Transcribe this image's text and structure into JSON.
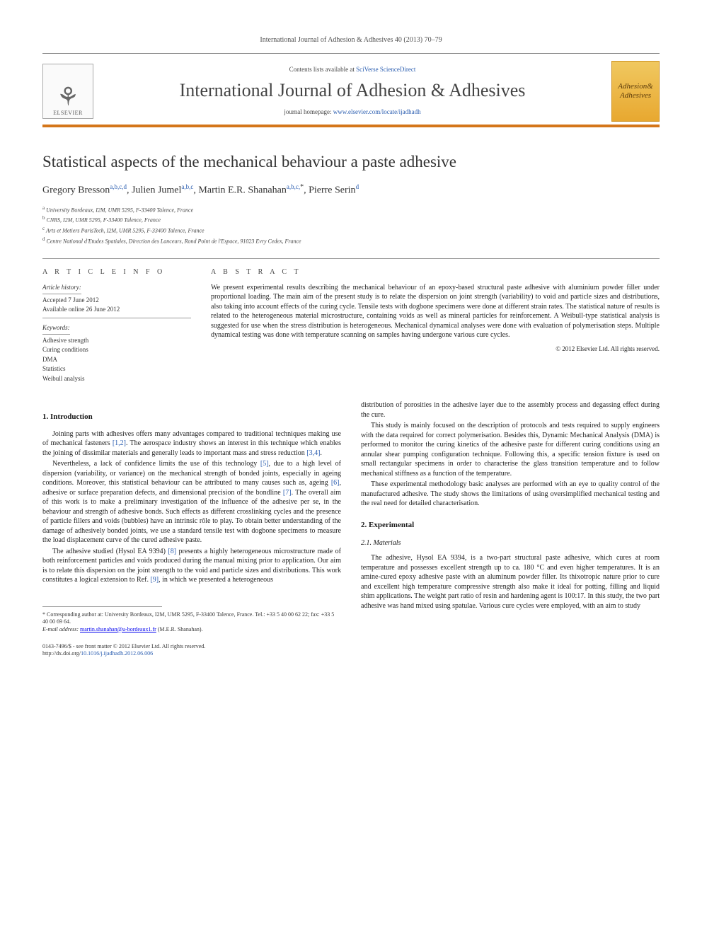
{
  "header": {
    "citation": "International Journal of Adhesion & Adhesives 40 (2013) 70–79",
    "contents_prefix": "Contents lists available at ",
    "contents_link": "SciVerse ScienceDirect",
    "journal_name": "International Journal of Adhesion & Adhesives",
    "homepage_prefix": "journal homepage: ",
    "homepage_link": "www.elsevier.com/locate/ijadhadh",
    "publisher": "ELSEVIER",
    "cover_line1": "Adhesion&",
    "cover_line2": "Adhesives"
  },
  "article": {
    "title": "Statistical aspects of the mechanical behaviour a paste adhesive",
    "authors": [
      {
        "name": "Gregory Bresson",
        "aff": "a,b,c,d"
      },
      {
        "name": "Julien Jumel",
        "aff": "a,b,c"
      },
      {
        "name": "Martin E.R. Shanahan",
        "aff": "a,b,c,",
        "star": "*"
      },
      {
        "name": "Pierre Serin",
        "aff": "d"
      }
    ],
    "affiliations": [
      {
        "sup": "a",
        "text": "University Bordeaux, I2M, UMR 5295, F-33400 Talence, France"
      },
      {
        "sup": "b",
        "text": "CNRS, I2M, UMR 5295, F-33400 Talence, France"
      },
      {
        "sup": "c",
        "text": "Arts et Metiers ParisTech, I2M, UMR 5295, F-33400 Talence, France"
      },
      {
        "sup": "d",
        "text": "Centre National d'Etudes Spatiales, Direction des Lanceurs, Rond Point de l'Espace, 91023 Evry Cedex, France"
      }
    ]
  },
  "info": {
    "article_info_heading": "A R T I C L E  I N F O",
    "abstract_heading": "A B S T R A C T",
    "history_label": "Article history:",
    "accepted": "Accepted 7 June 2012",
    "online": "Available online 26 June 2012",
    "keywords_label": "Keywords:",
    "keywords": [
      "Adhesive strength",
      "Curing conditions",
      "DMA",
      "Statistics",
      "Weibull analysis"
    ],
    "abstract": "We present experimental results describing the mechanical behaviour of an epoxy-based structural paste adhesive with aluminium powder filler under proportional loading. The main aim of the present study is to relate the dispersion on joint strength (variability) to void and particle sizes and distributions, also taking into account effects of the curing cycle. Tensile tests with dogbone specimens were done at different strain rates. The statistical nature of results is related to the heterogeneous material microstructure, containing voids as well as mineral particles for reinforcement. A Weibull-type statistical analysis is suggested for use when the stress distribution is heterogeneous. Mechanical dynamical analyses were done with evaluation of polymerisation steps. Multiple dynamical testing was done with temperature scanning on samples having undergone various cure cycles.",
    "copyright": "© 2012 Elsevier Ltd. All rights reserved."
  },
  "body": {
    "sec1_heading": "1. Introduction",
    "sec2_heading": "2. Experimental",
    "sec21_heading": "2.1. Materials",
    "p1_pre": "Joining parts with adhesives offers many advantages compared to traditional techniques making use of mechanical fasteners ",
    "p1_c1": "[1,2]",
    "p1_mid": ". The aerospace industry shows an interest in this technique which enables the joining of dissimilar materials and generally leads to important mass and stress reduction ",
    "p1_c2": "[3,4]",
    "p1_end": ".",
    "p2_pre": "Nevertheless, a lack of confidence limits the use of this technology ",
    "p2_c1": "[5]",
    "p2_a": ", due to a high level of dispersion (variability, or variance) on the mechanical strength of bonded joints, especially in ageing conditions. Moreover, this statistical behaviour can be attributed to many causes such as, ageing ",
    "p2_c2": "[6]",
    "p2_b": ", adhesive or surface preparation defects, and dimensional precision of the bondline ",
    "p2_c3": "[7]",
    "p2_c": ". The overall aim of this work is to make a preliminary investigation of the influence of the adhesive per se, in the behaviour and strength of adhesive bonds. Such effects as different crosslinking cycles and the presence of particle fillers and voids (bubbles) have an intrinsic rôle to play. To obtain better understanding of the damage of adhesively bonded joints, we use a standard tensile test with dogbone specimens to measure the load displacement curve of the cured adhesive paste.",
    "p3_pre": "The adhesive studied (Hysol EA 9394) ",
    "p3_c1": "[8]",
    "p3_a": " presents a highly heterogeneous microstructure made of both reinforcement particles and voids produced during the manual mixing prior to application. Our aim is to relate this dispersion on the joint strength to the void and particle sizes and distributions. This work constitutes a logical extension to Ref. ",
    "p3_c2": "[9]",
    "p3_b": ", in which we presented a heterogeneous",
    "p4": "distribution of porosities in the adhesive layer due to the assembly process and degassing effect during the cure.",
    "p5": "This study is mainly focused on the description of protocols and tests required to supply engineers with the data required for correct polymerisation. Besides this, Dynamic Mechanical Analysis (DMA) is performed to monitor the curing kinetics of the adhesive paste for different curing conditions using an annular shear pumping configuration technique. Following this, a specific tension fixture is used on small rectangular specimens in order to characterise the glass transition temperature and to follow mechanical stiffness as a function of the temperature.",
    "p6": "These experimental methodology basic analyses are performed with an eye to quality control of the manufactured adhesive. The study shows the limitations of using oversimplified mechanical testing and the real need for detailed characterisation.",
    "p7": "The adhesive, Hysol EA 9394, is a two-part structural paste adhesive, which cures at room temperature and possesses excellent strength up to ca. 180 °C and even higher temperatures. It is an amine-cured epoxy adhesive paste with an aluminum powder filler. Its thixotropic nature prior to cure and excellent high temperature compressive strength also make it ideal for potting, filling and liquid shim applications. The weight part ratio of resin and hardening agent is 100:17. In this study, the two part adhesive was hand mixed using spatulae. Various cure cycles were employed, with an aim to study"
  },
  "footnotes": {
    "corr_star": "*",
    "corr_text": "Corresponding author at: University Bordeaux, I2M, UMR 5295, F-33400 Talence, France. Tel.: +33 5 40 00 62 22; fax: +33 5 40 00 69 64.",
    "email_label": "E-mail address: ",
    "email": "martin.shanahan@u-bordeaux1.fr",
    "email_suffix": " (M.E.R. Shanahan).",
    "issn": "0143-7496/$ - see front matter © 2012 Elsevier Ltd. All rights reserved.",
    "doi_label": "http://dx.doi.org/",
    "doi": "10.1016/j.ijadhadh.2012.06.006"
  },
  "colors": {
    "accent": "#d4761a",
    "link": "#2a5db0",
    "cover_bg": "#e8a830"
  }
}
